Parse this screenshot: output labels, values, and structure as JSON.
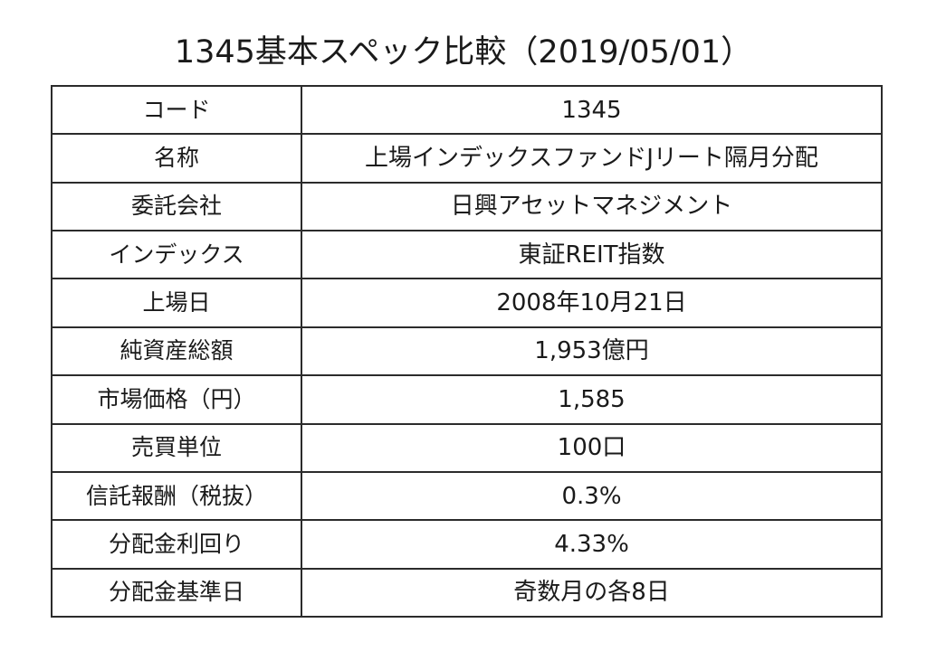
{
  "title": "1345基本スペック比較（2019/05/01）",
  "rows": [
    {
      "label": "コード",
      "value": "1345"
    },
    {
      "label": "名称",
      "value": "上場インデックスファンドJリート隔月分配"
    },
    {
      "label": "委託会社",
      "value": "日興アセットマネジメント"
    },
    {
      "label": "インデックス",
      "value": "東証REIT指数"
    },
    {
      "label": "上場日",
      "value": "2008年10月21日"
    },
    {
      "label": "純資産総額",
      "value": "1,953億円"
    },
    {
      "label": "市場価格（円）",
      "value": "1,585"
    },
    {
      "label": "売買単位",
      "value": "100口"
    },
    {
      "label": "信託報酬（税抜）",
      "value": "0.3%"
    },
    {
      "label": "分配金利回り",
      "value": "4.33%"
    },
    {
      "label": "分配金基準日",
      "value": "奇数月の各8日"
    }
  ]
}
